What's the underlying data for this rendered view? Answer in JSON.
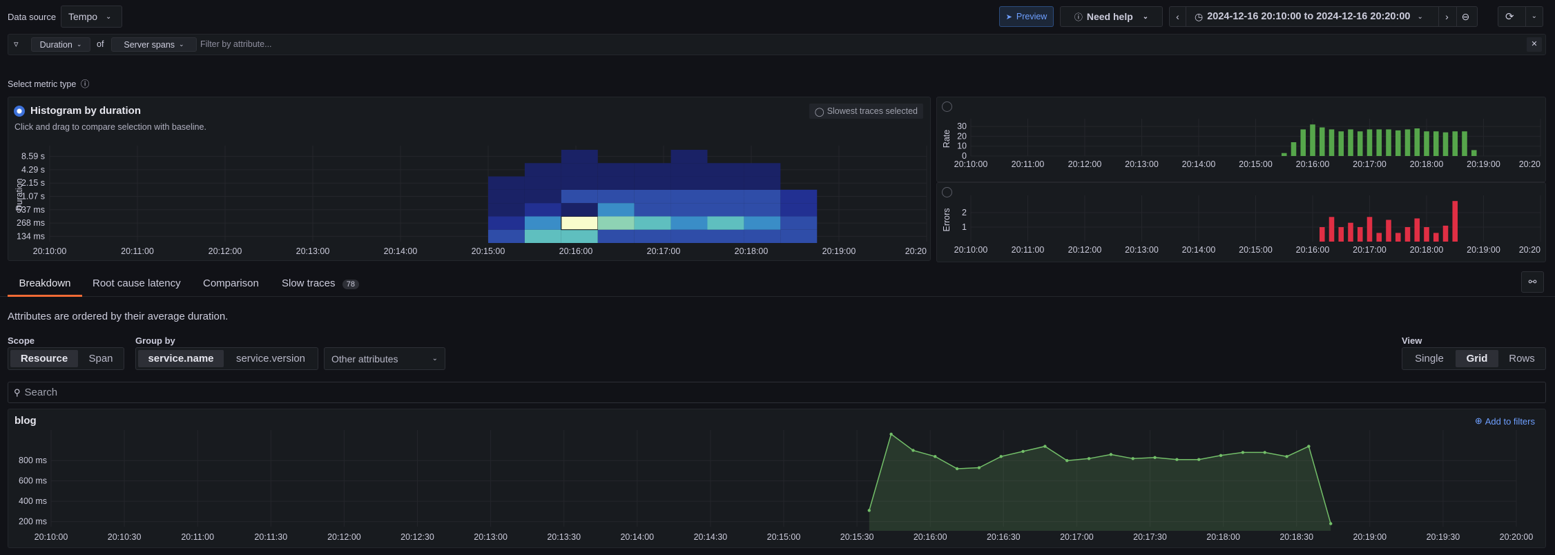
{
  "top": {
    "datasource_label": "Data source",
    "datasource_value": "Tempo",
    "preview": "Preview",
    "need_help": "Need help",
    "time_range": "2024-12-16 20:10:00 to 2024-12-16 20:20:00"
  },
  "filter": {
    "metric": "Duration",
    "of": "of",
    "span_type": "Server spans",
    "placeholder": "Filter by attribute..."
  },
  "metric_type": {
    "label": "Select metric type"
  },
  "histogram": {
    "title": "Histogram by duration",
    "subtitle": "Click and drag to compare selection with baseline.",
    "badge": "Slowest traces selected",
    "ylabel": "Duration",
    "yticks": [
      "8.59 s",
      "4.29 s",
      "2.15 s",
      "1.07 s",
      "537 ms",
      "268 ms",
      "134 ms"
    ],
    "xticks": [
      "20:10:00",
      "20:11:00",
      "20:12:00",
      "20:13:00",
      "20:14:00",
      "20:15:00",
      "20:16:00",
      "20:17:00",
      "20:18:00",
      "20:19:00",
      "20:20"
    ]
  },
  "rate": {
    "ylabel": "Rate",
    "yticks": [
      "30",
      "20",
      "10",
      "0"
    ],
    "xticks": [
      "20:10:00",
      "20:11:00",
      "20:12:00",
      "20:13:00",
      "20:14:00",
      "20:15:00",
      "20:16:00",
      "20:17:00",
      "20:18:00",
      "20:19:00",
      "20:20"
    ]
  },
  "errors": {
    "ylabel": "Errors",
    "yticks": [
      "2",
      "1"
    ],
    "xticks": [
      "20:10:00",
      "20:11:00",
      "20:12:00",
      "20:13:00",
      "20:14:00",
      "20:15:00",
      "20:16:00",
      "20:17:00",
      "20:18:00",
      "20:19:00",
      "20:20"
    ]
  },
  "tabs": [
    {
      "label": "Breakdown"
    },
    {
      "label": "Root cause latency"
    },
    {
      "label": "Comparison"
    },
    {
      "label": "Slow traces",
      "count": "78"
    }
  ],
  "breakdown": {
    "description": "Attributes are ordered by their average duration.",
    "scope_label": "Scope",
    "scope_options": [
      "Resource",
      "Span"
    ],
    "groupby_label": "Group by",
    "groupby_options": [
      "service.name",
      "service.version"
    ],
    "other_attributes": "Other attributes",
    "view_label": "View",
    "view_options": [
      "Single",
      "Grid",
      "Rows"
    ],
    "search_placeholder": "Search"
  },
  "blog": {
    "title": "blog",
    "add_to_filters": "Add to filters",
    "yticks": [
      "800 ms",
      "600 ms",
      "400 ms",
      "200 ms"
    ],
    "xticks": [
      "20:10:00",
      "20:10:30",
      "20:11:00",
      "20:11:30",
      "20:12:00",
      "20:12:30",
      "20:13:00",
      "20:13:30",
      "20:14:00",
      "20:14:30",
      "20:15:00",
      "20:15:30",
      "20:16:00",
      "20:16:30",
      "20:17:00",
      "20:17:30",
      "20:18:00",
      "20:18:30",
      "20:19:00",
      "20:19:30",
      "20:20:00"
    ]
  },
  "chart_data": [
    {
      "type": "bar",
      "name": "Rate",
      "x": [
        "20:15:30",
        "20:15:40",
        "20:15:50",
        "20:16:00",
        "20:16:10",
        "20:16:20",
        "20:16:30",
        "20:16:40",
        "20:16:50",
        "20:17:00",
        "20:17:10",
        "20:17:20",
        "20:17:30",
        "20:17:40",
        "20:17:50",
        "20:18:00",
        "20:18:10",
        "20:18:20",
        "20:18:30",
        "20:18:40",
        "20:18:50"
      ],
      "values": [
        3,
        14,
        27,
        32,
        29,
        27,
        25,
        27,
        25,
        27,
        27,
        27,
        26,
        27,
        28,
        25,
        25,
        24,
        25,
        25,
        6
      ],
      "ylim": [
        0,
        35
      ],
      "color": "#56a64b"
    },
    {
      "type": "bar",
      "name": "Errors",
      "x": [
        "20:16:10",
        "20:16:20",
        "20:16:30",
        "20:16:40",
        "20:16:50",
        "20:17:00",
        "20:17:10",
        "20:17:20",
        "20:17:30",
        "20:17:40",
        "20:17:50",
        "20:18:00",
        "20:18:10",
        "20:18:20",
        "20:18:30"
      ],
      "values": [
        1,
        1.7,
        1,
        1.3,
        1,
        1.7,
        0.6,
        1.5,
        0.6,
        1,
        1.6,
        1,
        0.6,
        1.1,
        2.8
      ],
      "ylim": [
        0,
        3
      ],
      "color": "#e02f44"
    },
    {
      "type": "line",
      "name": "blog",
      "x": [
        "20:15:35",
        "20:15:44",
        "20:15:53",
        "20:16:02",
        "20:16:11",
        "20:16:20",
        "20:16:29",
        "20:16:38",
        "20:16:47",
        "20:16:56",
        "20:17:05",
        "20:17:14",
        "20:17:23",
        "20:17:32",
        "20:17:41",
        "20:17:50",
        "20:17:59",
        "20:18:08",
        "20:18:17",
        "20:18:26",
        "20:18:35",
        "20:18:44"
      ],
      "values": [
        310,
        1060,
        900,
        840,
        720,
        730,
        840,
        890,
        940,
        800,
        820,
        860,
        820,
        830,
        810,
        810,
        850,
        880,
        880,
        840,
        940,
        180
      ],
      "ylim": [
        150,
        1100
      ],
      "unit": "ms",
      "color": "#73bf69"
    },
    {
      "type": "heatmap",
      "name": "Histogram by duration",
      "x": [
        "20:15:00",
        "20:15:25",
        "20:15:50",
        "20:16:15",
        "20:16:40",
        "20:17:05",
        "20:17:30",
        "20:17:55",
        "20:18:20"
      ],
      "y": [
        "134 ms",
        "268 ms",
        "537 ms",
        "1.07 s",
        "2.15 s",
        "4.29 s",
        "8.59 s"
      ],
      "values": [
        [
          3,
          5,
          5,
          3,
          3,
          3,
          3,
          3,
          3
        ],
        [
          2,
          4,
          9,
          6,
          5,
          4,
          5,
          4,
          3
        ],
        [
          1,
          2,
          1,
          4,
          3,
          3,
          3,
          3,
          2
        ],
        [
          1,
          1,
          3,
          3,
          3,
          3,
          3,
          3,
          2
        ],
        [
          1,
          1,
          1,
          1,
          1,
          1,
          1,
          1,
          0
        ],
        [
          0,
          1,
          1,
          1,
          1,
          1,
          1,
          1,
          0
        ],
        [
          0,
          0,
          1,
          0,
          0,
          1,
          0,
          0,
          0
        ]
      ]
    }
  ]
}
